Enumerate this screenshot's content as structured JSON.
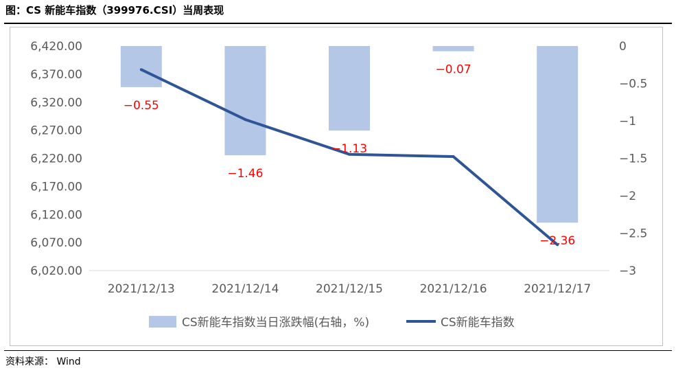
{
  "title": "图：CS 新能车指数（399976.CSI）当周表现",
  "source": "资料来源： Wind",
  "colors": {
    "bar": "#b4c7e7",
    "line": "#2f5597",
    "label": "#ff0000",
    "axis_text": "#595959"
  },
  "chart_data": {
    "type": "bar+line",
    "categories": [
      "2021/12/13",
      "2021/12/14",
      "2021/12/15",
      "2021/12/16",
      "2021/12/17"
    ],
    "series": [
      {
        "name": "CS新能车指数当日涨跌幅(右轴，%)",
        "type": "bar",
        "axis": "right",
        "values": [
          -0.55,
          -1.46,
          -1.13,
          -0.07,
          -2.36
        ],
        "labels": [
          "−0.55",
          "−1.46",
          "−1.13",
          "−0.07",
          "−2.36"
        ]
      },
      {
        "name": "CS新能车指数",
        "type": "line",
        "axis": "left",
        "values": [
          6378,
          6289,
          6227,
          6223,
          6066
        ]
      }
    ],
    "y_left": {
      "range": [
        6020,
        6420
      ],
      "ticks": [
        6420,
        6370,
        6320,
        6270,
        6220,
        6170,
        6120,
        6070,
        6020
      ],
      "tick_labels": [
        "6,420.00",
        "6,370.00",
        "6,320.00",
        "6,270.00",
        "6,220.00",
        "6,170.00",
        "6,120.00",
        "6,070.00",
        "6,020.00"
      ]
    },
    "y_right": {
      "range": [
        -3,
        0
      ],
      "ticks": [
        0,
        -0.5,
        -1,
        -1.5,
        -2,
        -2.5,
        -3
      ],
      "tick_labels": [
        "0",
        "−0.5",
        "−1",
        "−1.5",
        "−2",
        "−2.5",
        "−3"
      ]
    },
    "legend_position": "bottom",
    "grid": false
  }
}
